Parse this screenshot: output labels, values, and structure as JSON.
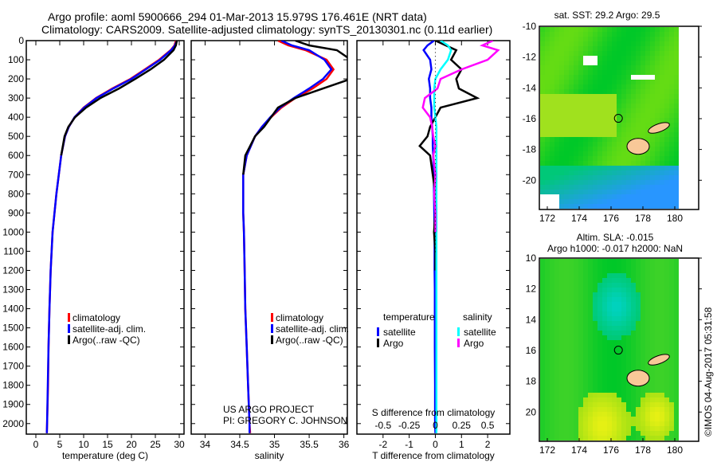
{
  "header": {
    "title_line1": "Argo profile: aoml 5900666_294 01-Mar-2013 15.979S 176.461E (NRT data)",
    "title_line2": "Climatology: CARS2009. Satellite-adjusted climatology: synTS_20130301.nc (0.11d earlier)"
  },
  "colors": {
    "climatology": "#ff0000",
    "satellite": "#0000ff",
    "argo": "#000000",
    "sal_sat": "#00ffff",
    "sal_argo": "#ff00ff",
    "land": "#f8c898"
  },
  "chart_data": [
    {
      "type": "line",
      "id": "temperature",
      "xlabel": "temperature (deg C)",
      "ylabel": "",
      "xlim": [
        -2,
        31
      ],
      "ylim": [
        2055,
        0
      ],
      "xticks": [
        "0",
        "5",
        "10",
        "15",
        "20",
        "25",
        "30"
      ],
      "xtick_values": [
        0,
        5,
        10,
        15,
        20,
        25,
        30
      ],
      "yticks": [
        "0",
        "100",
        "200",
        "300",
        "400",
        "500",
        "600",
        "700",
        "800",
        "900",
        "1000",
        "1100",
        "1200",
        "1300",
        "1400",
        "1500",
        "1600",
        "1700",
        "1800",
        "1900",
        "2000"
      ],
      "ytick_values": [
        0,
        100,
        200,
        300,
        400,
        500,
        600,
        700,
        800,
        900,
        1000,
        1100,
        1200,
        1300,
        1400,
        1500,
        1600,
        1700,
        1800,
        1900,
        2000
      ],
      "depth": [
        0,
        25,
        50,
        100,
        150,
        200,
        250,
        300,
        350,
        400,
        450,
        500,
        600,
        700,
        800,
        900,
        1000,
        1200,
        1400,
        1600,
        1800,
        2000,
        2050
      ],
      "series": [
        {
          "name": "climatology",
          "color": "#ff0000",
          "values": [
            29.3,
            29,
            28.2,
            25.8,
            22.8,
            19.8,
            16,
            12.6,
            10,
            8.1,
            6.9,
            6.1,
            5.3,
            4.8,
            4.3,
            3.9,
            3.5,
            3.1,
            2.85,
            2.65,
            2.55,
            2.35,
            2.3
          ]
        },
        {
          "name": "satellite-adj. clim.",
          "color": "#0000ff",
          "values": [
            29.5,
            29.1,
            28.3,
            26,
            23,
            20,
            16.2,
            12.7,
            10.1,
            8.1,
            6.9,
            6.1,
            5.3,
            4.8,
            4.3,
            3.9,
            3.5,
            3.1,
            2.85,
            2.65,
            2.5,
            2.35,
            2.3
          ]
        },
        {
          "name": "Argo(..raw -QC)",
          "color": "#000000",
          "values": [
            29.5,
            29.3,
            28.8,
            26.8,
            24,
            20.8,
            17.4,
            13.5,
            10.5,
            8.2,
            6.8,
            6,
            5.3,
            null,
            null,
            null,
            null,
            null,
            null,
            null,
            null,
            null,
            null
          ]
        }
      ]
    },
    {
      "type": "line",
      "id": "salinity",
      "xlabel": "salinity",
      "xlim": [
        33.8,
        36.05
      ],
      "ylim": [
        2055,
        0
      ],
      "xticks": [
        "34",
        "34.5",
        "35",
        "35.5",
        "36"
      ],
      "xtick_values": [
        34,
        34.5,
        35,
        35.5,
        36
      ],
      "depth": [
        0,
        25,
        50,
        100,
        150,
        200,
        250,
        300,
        350,
        400,
        450,
        500,
        600,
        700,
        800,
        900,
        1000,
        1200,
        1400,
        1600,
        1800,
        2000,
        2050
      ],
      "series": [
        {
          "name": "climatology",
          "color": "#ff0000",
          "values": [
            35.05,
            35.2,
            35.45,
            35.75,
            35.85,
            35.75,
            35.55,
            35.3,
            35.1,
            34.95,
            34.82,
            34.72,
            34.6,
            34.55,
            34.55,
            34.55,
            34.56,
            34.57,
            34.58,
            34.6,
            34.62,
            34.64,
            34.65
          ]
        },
        {
          "name": "satellite-adj. clim.",
          "color": "#0000ff",
          "values": [
            35.1,
            35.25,
            35.5,
            35.72,
            35.82,
            35.7,
            35.5,
            35.28,
            35.08,
            34.94,
            34.82,
            34.72,
            34.6,
            34.55,
            34.55,
            34.55,
            34.56,
            34.57,
            34.58,
            34.6,
            34.62,
            34.64,
            34.64
          ]
        },
        {
          "name": "Argo(..raw -QC)",
          "color": "#000000",
          "values": [
            35.3,
            35.5,
            35.9,
            36.1,
            36.1,
            36.1,
            35.7,
            35.3,
            35.05,
            34.95,
            34.85,
            34.72,
            34.58,
            34.55,
            null,
            null,
            null,
            null,
            null,
            null,
            null,
            null,
            null
          ]
        }
      ],
      "annotation_line1": "US ARGO PROJECT",
      "annotation_line2": "PI: GREGORY C. JOHNSON"
    },
    {
      "type": "line",
      "id": "differences",
      "xlabel": "T difference from climatology",
      "x2label": "S difference from climatology",
      "xlim": [
        -3,
        2.85
      ],
      "ylim": [
        2055,
        0
      ],
      "xticks": [
        "-2",
        "-1",
        "0",
        "1",
        "2"
      ],
      "xtick_values": [
        -2,
        -1,
        0,
        1,
        2
      ],
      "x2ticks": [
        "-0.5",
        "-0.25",
        "0",
        "0.25",
        "0.5"
      ],
      "x2tick_values": [
        -0.5,
        -0.25,
        0,
        0.25,
        0.5
      ],
      "legend_temp_title": "temperature",
      "legend_sal_title": "salinity",
      "depth": [
        0,
        25,
        50,
        100,
        150,
        200,
        250,
        300,
        350,
        400,
        450,
        500,
        550,
        600,
        700,
        800,
        900,
        1000,
        1100,
        1200,
        1300,
        1400,
        1600,
        1800,
        2000,
        2050
      ],
      "series": [
        {
          "name": "satellite",
          "group": "temperature",
          "color": "#0000ff",
          "scale": "T",
          "values": [
            -0.05,
            -0.3,
            -0.45,
            -0.2,
            -0.15,
            -0.25,
            -0.2,
            -0.2,
            -0.15,
            -0.15,
            -0.12,
            -0.1,
            -0.1,
            -0.08,
            -0.06,
            -0.05,
            -0.04,
            -0.03,
            -0.03,
            -0.03,
            -0.02,
            -0.02,
            -0.02,
            -0.01,
            -0.01,
            0
          ]
        },
        {
          "name": "Argo",
          "group": "temperature",
          "color": "#000000",
          "scale": "T",
          "values": [
            0,
            0.4,
            0.8,
            0.6,
            1.0,
            0.8,
            0.9,
            1.6,
            0.2,
            0,
            -0.2,
            -0.3,
            -0.6,
            -0.2,
            -0.1,
            0,
            0,
            -0.05,
            0,
            0,
            null,
            null,
            null,
            null,
            null,
            null
          ]
        },
        {
          "name": "satellite",
          "group": "salinity",
          "color": "#00ffff",
          "scale": "S",
          "values": [
            0.05,
            0.12,
            0.15,
            0.12,
            0.05,
            0.0,
            -0.01,
            -0.01,
            -0.01,
            0,
            0.01,
            0.01,
            0.01,
            0.01,
            0.01,
            0.01,
            0.01,
            0.01,
            0.01,
            0.01,
            0.01,
            0.01,
            0.01,
            0.01,
            0.01,
            0.01
          ]
        },
        {
          "name": "Argo",
          "group": "salinity",
          "color": "#ff00ff",
          "scale": "S",
          "values": [
            0.55,
            0.45,
            0.6,
            0.5,
            0.25,
            0.05,
            0.02,
            -0.1,
            -0.12,
            -0.05,
            -0.03,
            -0.02,
            0.0,
            -0.02,
            0.0,
            -0.01,
            0,
            0,
            null,
            null,
            null,
            null,
            null,
            null,
            null,
            null
          ]
        }
      ]
    },
    {
      "type": "heatmap",
      "id": "sst-map",
      "title": "sat. SST: 29.2 Argo: 29.5",
      "xlim": [
        171.5,
        181.5
      ],
      "ylim": [
        -21.9,
        -10
      ],
      "xticks": [
        "172",
        "174",
        "176",
        "178",
        "180"
      ],
      "xtick_values": [
        172,
        174,
        176,
        178,
        180
      ],
      "yticks": [
        "-10",
        "-12",
        "-14",
        "-16",
        "-18",
        "-20"
      ],
      "ytick_values": [
        -10,
        -12,
        -14,
        -16,
        -18,
        -20
      ],
      "argo_position": [
        176.461,
        -15.979
      ]
    },
    {
      "type": "heatmap",
      "id": "sla-map",
      "title_line1": "Altim. SLA: -0.015",
      "title_line2": "Argo h1000: -0.017 h2000: NaN",
      "xlim": [
        171.5,
        181.5
      ],
      "ylim": [
        -21.9,
        -10
      ],
      "xticks": [
        "172",
        "174",
        "176",
        "178",
        "180"
      ],
      "xtick_values": [
        172,
        174,
        176,
        178,
        180
      ],
      "yticks": [
        "10",
        "12",
        "14",
        "16",
        "18",
        "20"
      ],
      "ytick_values": [
        -10,
        -12,
        -14,
        -16,
        -18,
        -20
      ],
      "argo_position": [
        176.461,
        -15.979
      ]
    }
  ],
  "footer": {
    "credit": "©IMOS 04-Aug-2017 05:31:58"
  }
}
